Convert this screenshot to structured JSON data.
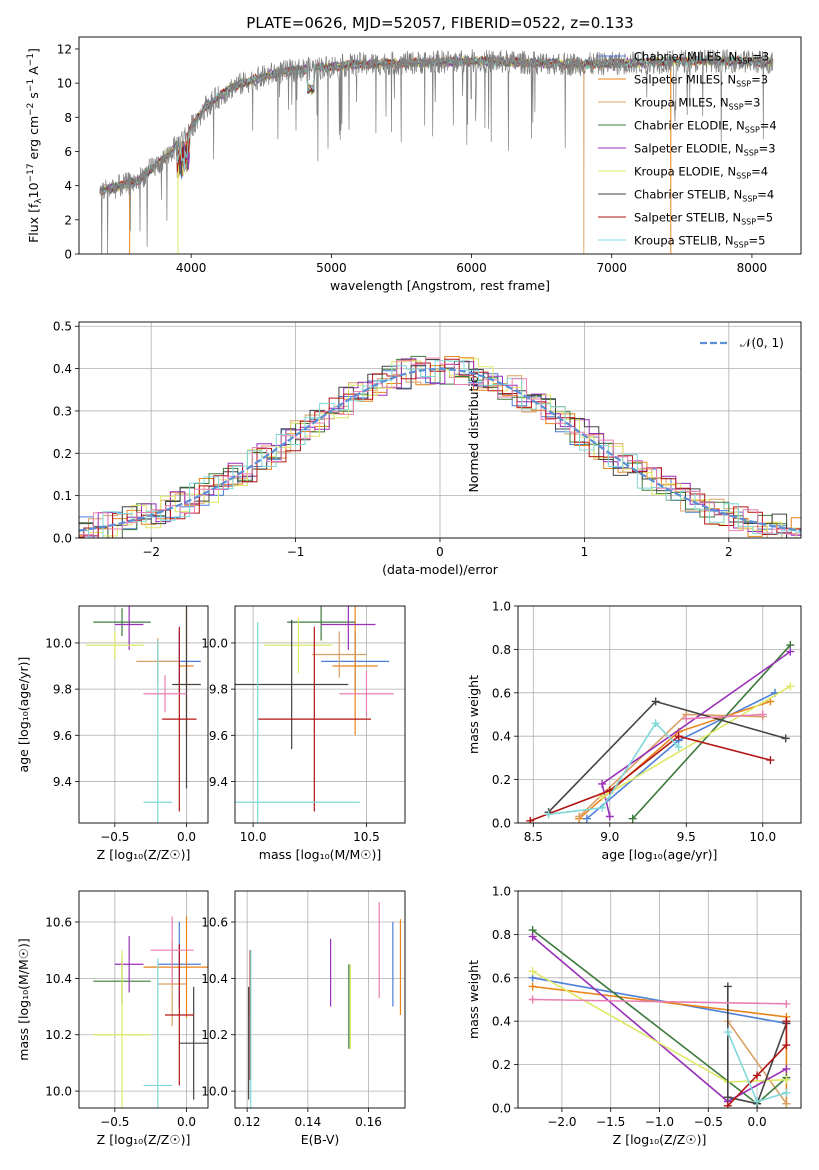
{
  "figure_title": "PLATE=0626, MJD=52057, FIBERID=0522, z=0.133",
  "colors": {
    "Chabrier MILES": "#4c7fd8",
    "Salpeter MILES": "#e8841a",
    "Kroupa MILES": "#d9a066",
    "Chabrier ELODIE": "#3c7a3c",
    "Salpeter ELODIE": "#9a2fb8",
    "Kroupa ELODIE": "#dfe866",
    "Chabrier STELIB": "#444444",
    "Salpeter STELIB": "#b31414",
    "Kroupa STELIB": "#7fd8d8",
    "pink": "#e87fb2",
    "spectrum_data": "#808080",
    "normal_curve": "#5b8fd6"
  },
  "chart_data": [
    {
      "type": "line",
      "id": "spectrum",
      "xlabel": "wavelength [Angstrom, rest frame]",
      "ylabel": "Flux [f",
      "ylabel_full": "Flux [f_λ10^{-17} erg cm^{-2} s^{-1} A^{-1}]",
      "xlim": [
        3200,
        8350
      ],
      "ylim": [
        0,
        12.7
      ],
      "xticks": [
        4000,
        5000,
        6000,
        7000,
        8000
      ],
      "yticks": [
        0,
        2,
        4,
        6,
        8,
        10,
        12
      ],
      "grid": false,
      "legend_position": "top-right",
      "legend": [
        {
          "name": "Chabrier MILES",
          "nssp": "3"
        },
        {
          "name": "Salpeter MILES",
          "nssp": "3"
        },
        {
          "name": "Kroupa MILES",
          "nssp": "3"
        },
        {
          "name": "Chabrier ELODIE",
          "nssp": "4"
        },
        {
          "name": "Salpeter ELODIE",
          "nssp": "3"
        },
        {
          "name": "Kroupa ELODIE",
          "nssp": "4"
        },
        {
          "name": "Chabrier STELIB",
          "nssp": "4"
        },
        {
          "name": "Salpeter STELIB",
          "nssp": "5"
        },
        {
          "name": "Kroupa STELIB",
          "nssp": "5"
        }
      ],
      "continuum": {
        "x": [
          3350,
          3600,
          3800,
          3950,
          4100,
          4300,
          4600,
          4900,
          5200,
          5600,
          6000,
          6400,
          6800,
          7200,
          7500,
          7900,
          8150
        ],
        "y": [
          3.7,
          4.2,
          5.5,
          6.8,
          8.6,
          9.8,
          10.6,
          10.9,
          11.1,
          11.2,
          11.3,
          11.2,
          11.1,
          11.2,
          11.3,
          11.3,
          11.2
        ]
      },
      "drops": [
        {
          "x": 3560,
          "series": "Salpeter MILES"
        },
        {
          "x": 3905,
          "series": "Kroupa ELODIE"
        },
        {
          "x": 6800,
          "series": "Kroupa MILES"
        },
        {
          "x": 7420,
          "series": "Salpeter MILES"
        }
      ]
    },
    {
      "type": "bar",
      "id": "residuals",
      "xlabel": "(data-model)/error",
      "ylabel": "Normed distribution",
      "xlim": [
        -2.5,
        2.5
      ],
      "ylim": [
        0,
        0.51
      ],
      "xticks": [
        -2,
        -1,
        0,
        1,
        2
      ],
      "yticks": [
        0.0,
        0.1,
        0.2,
        0.3,
        0.4,
        0.5
      ],
      "grid": true,
      "legend_position": "top-right",
      "legend": [
        {
          "name": "𝒩(0, 1)"
        }
      ],
      "bin_width": 0.1
    },
    {
      "type": "scatter",
      "id": "age_vs_Z",
      "xlabel": "Z [log₁₀(Z/Z☉)]",
      "ylabel": "age  [log₁₀(age/yr)]",
      "xlim": [
        -0.75,
        0.15
      ],
      "ylim": [
        9.22,
        10.16
      ],
      "xticks": [
        -0.5,
        0.0
      ],
      "yticks": [
        9.4,
        9.6,
        9.8,
        10.0
      ],
      "grid": true,
      "points": [
        {
          "series": "Chabrier MILES",
          "x": -0.05,
          "xerr": 0.15,
          "y": 9.92,
          "yerr": 0.13
        },
        {
          "series": "Salpeter MILES",
          "x": 0.0,
          "xerr": 0.05,
          "y": 9.9,
          "yerr": 0.3
        },
        {
          "series": "Kroupa MILES",
          "x": -0.2,
          "xerr": 0.15,
          "y": 9.92,
          "yerr": 0.1
        },
        {
          "series": "Chabrier ELODIE",
          "x": -0.45,
          "xerr": 0.2,
          "y": 10.09,
          "yerr": 0.06
        },
        {
          "series": "Salpeter ELODIE",
          "x": -0.4,
          "xerr": 0.1,
          "y": 10.08,
          "yerr": 0.11
        },
        {
          "series": "Kroupa ELODIE",
          "x": -0.5,
          "xerr": 0.2,
          "y": 9.99,
          "yerr": 0.06
        },
        {
          "series": "Chabrier STELIB",
          "x": 0.0,
          "xerr": 0.1,
          "y": 9.82,
          "yerr": 0.45
        },
        {
          "series": "Salpeter STELIB",
          "x": -0.05,
          "xerr": 0.12,
          "y": 9.67,
          "yerr": 0.4
        },
        {
          "series": "Kroupa STELIB",
          "x": -0.2,
          "xerr": 0.1,
          "y": 9.31,
          "yerr": 0.7
        },
        {
          "series": "pink",
          "x": -0.15,
          "xerr": 0.15,
          "y": 9.78,
          "yerr": 0.08
        }
      ]
    },
    {
      "type": "scatter",
      "id": "age_vs_mass",
      "xlabel": "mass [log₁₀(M/M☉)]",
      "ylabel": "",
      "xlim": [
        9.92,
        10.67
      ],
      "ylim": [
        9.22,
        10.16
      ],
      "xticks": [
        10.0,
        10.5
      ],
      "yticks": [
        9.4,
        9.6,
        9.8,
        10.0
      ],
      "grid": true,
      "points": [
        {
          "series": "Chabrier MILES",
          "x": 10.45,
          "xerr": 0.15,
          "y": 9.92,
          "yerr": 0.13
        },
        {
          "series": "Salpeter MILES",
          "x": 10.45,
          "xerr": 0.1,
          "y": 9.9,
          "yerr": 0.3
        },
        {
          "series": "Kroupa MILES",
          "x": 10.38,
          "xerr": 0.12,
          "y": 9.95,
          "yerr": 0.1
        },
        {
          "series": "Chabrier ELODIE",
          "x": 10.3,
          "xerr": 0.15,
          "y": 10.09,
          "yerr": 0.08
        },
        {
          "series": "Salpeter ELODIE",
          "x": 10.42,
          "xerr": 0.12,
          "y": 10.08,
          "yerr": 0.11
        },
        {
          "series": "Kroupa ELODIE",
          "x": 10.2,
          "xerr": 0.15,
          "y": 9.99,
          "yerr": 0.12
        },
        {
          "series": "Chabrier STELIB",
          "x": 10.17,
          "xerr": 0.25,
          "y": 9.82,
          "yerr": 0.28
        },
        {
          "series": "Salpeter STELIB",
          "x": 10.27,
          "xerr": 0.25,
          "y": 9.67,
          "yerr": 0.4
        },
        {
          "series": "Kroupa STELIB",
          "x": 10.02,
          "xerr": 0.45,
          "y": 9.31,
          "yerr": 0.78
        },
        {
          "series": "pink",
          "x": 10.5,
          "xerr": 0.12,
          "y": 9.78,
          "yerr": 0.1
        }
      ]
    },
    {
      "type": "line",
      "id": "massweight_vs_age",
      "xlabel": "age  [log₁₀(age/yr)]",
      "ylabel": "mass weight",
      "xlim": [
        8.4,
        10.25
      ],
      "ylim": [
        0,
        1
      ],
      "xticks": [
        8.5,
        9.0,
        9.5,
        10.0
      ],
      "yticks": [
        0.0,
        0.2,
        0.4,
        0.6,
        0.8,
        1.0
      ],
      "grid": true,
      "series": [
        {
          "name": "Chabrier MILES",
          "x": [
            8.85,
            9.45,
            10.08
          ],
          "y": [
            0.02,
            0.38,
            0.6
          ]
        },
        {
          "name": "Salpeter MILES",
          "x": [
            8.8,
            9.45,
            10.05
          ],
          "y": [
            0.02,
            0.42,
            0.56
          ]
        },
        {
          "name": "Kroupa MILES",
          "x": [
            8.8,
            9.5,
            10.0
          ],
          "y": [
            0.03,
            0.5,
            0.49
          ]
        },
        {
          "name": "Chabrier ELODIE",
          "x": [
            9.15,
            10.18
          ],
          "y": [
            0.02,
            0.82
          ]
        },
        {
          "name": "Salpeter ELODIE",
          "x": [
            9.0,
            8.95,
            10.18
          ],
          "y": [
            0.03,
            0.18,
            0.79
          ]
        },
        {
          "name": "Kroupa ELODIE",
          "x": [
            8.95,
            9.0,
            10.18
          ],
          "y": [
            0.12,
            0.14,
            0.63
          ]
        },
        {
          "name": "Chabrier STELIB",
          "x": [
            8.6,
            9.3,
            10.15
          ],
          "y": [
            0.05,
            0.56,
            0.39
          ]
        },
        {
          "name": "Salpeter STELIB",
          "x": [
            8.48,
            9.0,
            9.45,
            10.05
          ],
          "y": [
            0.01,
            0.15,
            0.4,
            0.29
          ]
        },
        {
          "name": "Kroupa STELIB",
          "x": [
            8.6,
            8.95,
            9.3,
            9.45
          ],
          "y": [
            0.04,
            0.07,
            0.46,
            0.35
          ]
        },
        {
          "name": "pink",
          "x": [
            9.5,
            10.0
          ],
          "y": [
            0.48,
            0.5
          ]
        }
      ]
    },
    {
      "type": "scatter",
      "id": "mass_vs_Z",
      "xlabel": "Z [log₁₀(Z/Z☉)]",
      "ylabel": "mass [log₁₀(M/M☉)]",
      "xlim": [
        -0.75,
        0.15
      ],
      "ylim": [
        9.94,
        10.71
      ],
      "xticks": [
        -0.5,
        0.0
      ],
      "yticks": [
        10.0,
        10.2,
        10.4,
        10.6
      ],
      "grid": true,
      "points": [
        {
          "series": "Chabrier MILES",
          "x": -0.05,
          "xerr": 0.15,
          "y": 10.45,
          "yerr": 0.15
        },
        {
          "series": "Salpeter MILES",
          "x": 0.0,
          "xerr": 0.3,
          "y": 10.44,
          "yerr": 0.18
        },
        {
          "series": "Kroupa MILES",
          "x": -0.1,
          "xerr": 0.1,
          "y": 10.38,
          "yerr": 0.15
        },
        {
          "series": "Chabrier ELODIE",
          "x": -0.45,
          "xerr": 0.2,
          "y": 10.39,
          "yerr": 0.08
        },
        {
          "series": "Salpeter ELODIE",
          "x": -0.4,
          "xerr": 0.1,
          "y": 10.45,
          "yerr": 0.1
        },
        {
          "series": "Kroupa ELODIE",
          "x": -0.45,
          "xerr": 0.2,
          "y": 10.2,
          "yerr": 0.3
        },
        {
          "series": "Chabrier STELIB",
          "x": 0.05,
          "xerr": 0.1,
          "y": 10.17,
          "yerr": 0.2
        },
        {
          "series": "Salpeter STELIB",
          "x": -0.05,
          "xerr": 0.1,
          "y": 10.27,
          "yerr": 0.25
        },
        {
          "series": "Kroupa STELIB",
          "x": -0.2,
          "xerr": 0.1,
          "y": 10.02,
          "yerr": 0.45
        },
        {
          "series": "pink",
          "x": -0.1,
          "xerr": 0.15,
          "y": 10.5,
          "yerr": 0.12
        }
      ]
    },
    {
      "type": "scatter",
      "id": "mass_vs_ebv",
      "xlabel": "E(B-V)",
      "ylabel": "",
      "xlim": [
        0.116,
        0.172
      ],
      "ylim": [
        9.94,
        10.71
      ],
      "xticks": [
        0.12,
        0.14,
        0.16
      ],
      "yticks": [
        10.0,
        10.2,
        10.4,
        10.6
      ],
      "grid": true,
      "points": [
        {
          "series": "Chabrier MILES",
          "x": 0.168,
          "y": 10.45,
          "yerr": 0.15
        },
        {
          "series": "Salpeter MILES",
          "x": 0.1705,
          "y": 10.44,
          "yerr": 0.17
        },
        {
          "series": "Kroupa MILES",
          "x": 0.121,
          "y": 10.38,
          "yerr": 0.12
        },
        {
          "series": "Chabrier ELODIE",
          "x": 0.1535,
          "y": 10.3,
          "yerr": 0.15
        },
        {
          "series": "Salpeter ELODIE",
          "x": 0.1475,
          "y": 10.42,
          "yerr": 0.12
        },
        {
          "series": "Kroupa ELODIE",
          "x": 0.154,
          "y": 10.3,
          "yerr": 0.15
        },
        {
          "series": "Chabrier STELIB",
          "x": 0.1205,
          "y": 10.17,
          "yerr": 0.2
        },
        {
          "series": "Salpeter STELIB",
          "x": 0.121,
          "y": 10.27,
          "yerr": 0.23
        },
        {
          "series": "Kroupa STELIB",
          "x": 0.1212,
          "y": 10.1,
          "yerr": 0.4
        },
        {
          "series": "pink",
          "x": 0.1635,
          "y": 10.5,
          "yerr": 0.17
        }
      ]
    },
    {
      "type": "line",
      "id": "massweight_vs_Z",
      "xlabel": "Z [log₁₀(Z/Z☉)]",
      "ylabel": "mass weight",
      "xlim": [
        -2.45,
        0.45
      ],
      "ylim": [
        0,
        1
      ],
      "xticks": [
        -2.0,
        -1.5,
        -1.0,
        -0.5,
        0.0
      ],
      "yticks": [
        0.0,
        0.2,
        0.4,
        0.6,
        0.8,
        1.0
      ],
      "grid": true,
      "series": [
        {
          "name": "Chabrier MILES",
          "x": [
            -2.3,
            0.3
          ],
          "y": [
            0.6,
            0.39
          ]
        },
        {
          "name": "Salpeter MILES",
          "x": [
            -2.3,
            0.3,
            0.3
          ],
          "y": [
            0.56,
            0.42,
            0.02
          ]
        },
        {
          "name": "Kroupa MILES",
          "x": [
            -0.3,
            0.3
          ],
          "y": [
            0.4,
            0.02
          ]
        },
        {
          "name": "Chabrier ELODIE",
          "x": [
            -2.3,
            0.0,
            0.3
          ],
          "y": [
            0.82,
            0.02,
            0.14
          ]
        },
        {
          "name": "Salpeter ELODIE",
          "x": [
            -2.3,
            -0.3,
            0.3
          ],
          "y": [
            0.79,
            0.03,
            0.18
          ]
        },
        {
          "name": "Kroupa ELODIE",
          "x": [
            -2.3,
            -0.3,
            0.3
          ],
          "y": [
            0.63,
            0.12,
            0.13
          ]
        },
        {
          "name": "Chabrier STELIB",
          "x": [
            -0.3,
            -0.3,
            0.0,
            0.3
          ],
          "y": [
            0.56,
            0.05,
            0.02,
            0.39
          ]
        },
        {
          "name": "Salpeter STELIB",
          "x": [
            -0.3,
            0.0,
            0.3,
            0.3
          ],
          "y": [
            0.01,
            0.15,
            0.29,
            0.4
          ]
        },
        {
          "name": "Kroupa STELIB",
          "x": [
            -0.3,
            0.0,
            0.3
          ],
          "y": [
            0.35,
            0.03,
            0.07
          ]
        },
        {
          "name": "pink",
          "x": [
            -2.3,
            0.3
          ],
          "y": [
            0.5,
            0.48
          ]
        }
      ]
    }
  ]
}
